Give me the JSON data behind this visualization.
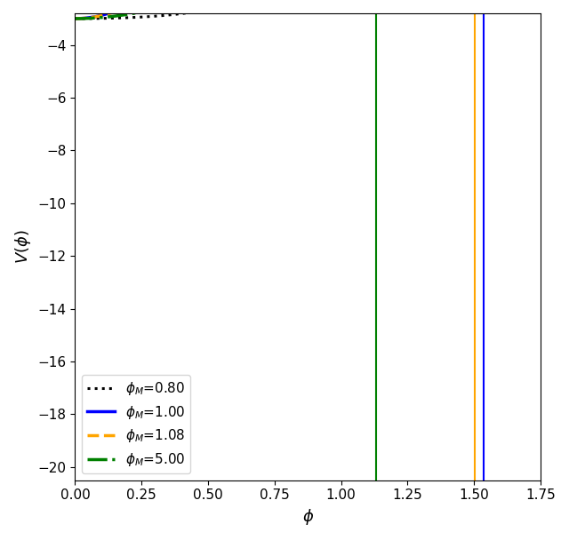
{
  "xlabel": "$\\phi$",
  "ylabel": "$V(\\phi)$",
  "xlim": [
    0.0,
    1.75
  ],
  "ylim": [
    -20.5,
    -2.8
  ],
  "yticks": [
    -20,
    -18,
    -16,
    -14,
    -12,
    -10,
    -8,
    -6,
    -4
  ],
  "xticks": [
    0.0,
    0.25,
    0.5,
    0.75,
    1.0,
    1.25,
    1.5,
    1.75
  ],
  "curves": [
    {
      "phi_M_label": "0.80",
      "phi_M": 0.8,
      "color": "black",
      "linestyle": "dotted",
      "linewidth": 2.2
    },
    {
      "phi_M_label": "1.00",
      "phi_M": 1.0,
      "color": "blue",
      "linestyle": "solid",
      "linewidth": 2.5
    },
    {
      "phi_M_label": "1.08",
      "phi_M": 1.08,
      "color": "orange",
      "linestyle": "dashed",
      "linewidth": 2.5
    },
    {
      "phi_M_label": "5.00",
      "phi_M": 5.0,
      "color": "green",
      "linestyle": "dashdot",
      "linewidth": 2.5
    }
  ],
  "vlines": [
    {
      "x": 1.1303,
      "color": "green",
      "linewidth": 1.5
    },
    {
      "x": 1.502,
      "color": "orange",
      "linewidth": 1.5
    },
    {
      "x": 1.535,
      "color": "blue",
      "linewidth": 1.5
    }
  ],
  "legend_loc": "lower left",
  "legend_fontsize": 11,
  "axis_fontsize": 13,
  "tick_fontsize": 11,
  "figsize": [
    6.4,
    6.08
  ],
  "dpi": 100
}
